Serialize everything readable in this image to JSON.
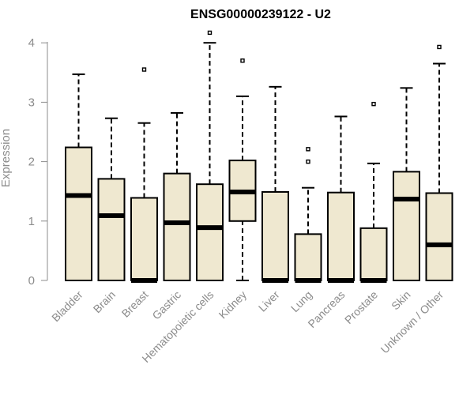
{
  "chart_data": {
    "type": "box",
    "title": "ENSG00000239122 - U2",
    "xlabel": "",
    "ylabel": "Expression",
    "ylim": [
      0,
      4.15
    ],
    "yticks": [
      0,
      1,
      2,
      3,
      4
    ],
    "grid": false,
    "colors": {
      "box_fill": "#efe8d0",
      "box_stroke": "#000000",
      "axis": "#8c8c8c"
    },
    "categories": [
      "Bladder",
      "Brain",
      "Breast",
      "Gastric",
      "Hematopoietic cells",
      "Kidney",
      "Liver",
      "Lung",
      "Pancreas",
      "Prostate",
      "Skin",
      "Unknown / Other"
    ],
    "boxes": [
      {
        "min": 0,
        "q1": 0,
        "median": 1.43,
        "q3": 2.24,
        "max": 3.47,
        "outliers": []
      },
      {
        "min": 0,
        "q1": 0,
        "median": 1.09,
        "q3": 1.71,
        "max": 2.73,
        "outliers": []
      },
      {
        "min": 0,
        "q1": 0,
        "median": 0.0,
        "q3": 1.39,
        "max": 2.65,
        "outliers": [
          3.55
        ]
      },
      {
        "min": 0,
        "q1": 0,
        "median": 0.97,
        "q3": 1.8,
        "max": 2.82,
        "outliers": []
      },
      {
        "min": 0,
        "q1": 0,
        "median": 0.89,
        "q3": 1.62,
        "max": 4.0,
        "outliers": [
          4.17
        ]
      },
      {
        "min": 0,
        "q1": 1.0,
        "median": 1.49,
        "q3": 2.02,
        "max": 3.1,
        "outliers": [
          3.7
        ]
      },
      {
        "min": 0,
        "q1": 0,
        "median": 0.0,
        "q3": 1.49,
        "max": 3.26,
        "outliers": []
      },
      {
        "min": 0,
        "q1": 0,
        "median": 0.0,
        "q3": 0.78,
        "max": 1.56,
        "outliers": [
          2.0,
          2.21
        ]
      },
      {
        "min": 0,
        "q1": 0,
        "median": 0.0,
        "q3": 1.48,
        "max": 2.76,
        "outliers": []
      },
      {
        "min": 0,
        "q1": 0,
        "median": 0.0,
        "q3": 0.88,
        "max": 1.97,
        "outliers": [
          2.97
        ]
      },
      {
        "min": 0,
        "q1": 0,
        "median": 1.37,
        "q3": 1.83,
        "max": 3.24,
        "outliers": []
      },
      {
        "min": 0,
        "q1": 0,
        "median": 0.6,
        "q3": 1.47,
        "max": 3.65,
        "outliers": [
          3.93
        ]
      }
    ]
  }
}
